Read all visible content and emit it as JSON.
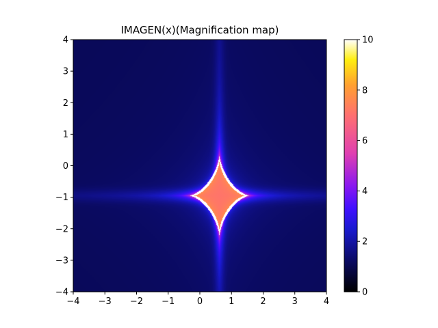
{
  "chart_data": {
    "type": "heatmap",
    "title": "IMAGEN(x)(Magnification map)",
    "xlabel": "",
    "ylabel": "",
    "xlim": [
      -4,
      4
    ],
    "ylim": [
      -4,
      4
    ],
    "x_ticks": [
      -4,
      -3,
      -2,
      -1,
      0,
      1,
      2,
      3,
      4
    ],
    "y_ticks": [
      -4,
      -3,
      -2,
      -1,
      0,
      1,
      2,
      3,
      4
    ],
    "x_tick_labels": [
      "−4",
      "−3",
      "−2",
      "−1",
      "0",
      "1",
      "2",
      "3",
      "4"
    ],
    "y_tick_labels": [
      "−4",
      "−3",
      "−2",
      "−1",
      "0",
      "1",
      "2",
      "3",
      "4"
    ],
    "colorbar": {
      "range": [
        0,
        10
      ],
      "ticks": [
        0,
        2,
        4,
        6,
        8,
        10
      ],
      "tick_labels": [
        "0",
        "2",
        "4",
        "6",
        "8",
        "10"
      ],
      "colormap": "gnuplot2"
    },
    "caustic_center": [
      0.62,
      -0.95
    ],
    "caustic_half_width_x": 0.95,
    "caustic_half_height_y": 1.3,
    "background_magnification": 1.0,
    "grid": false
  }
}
